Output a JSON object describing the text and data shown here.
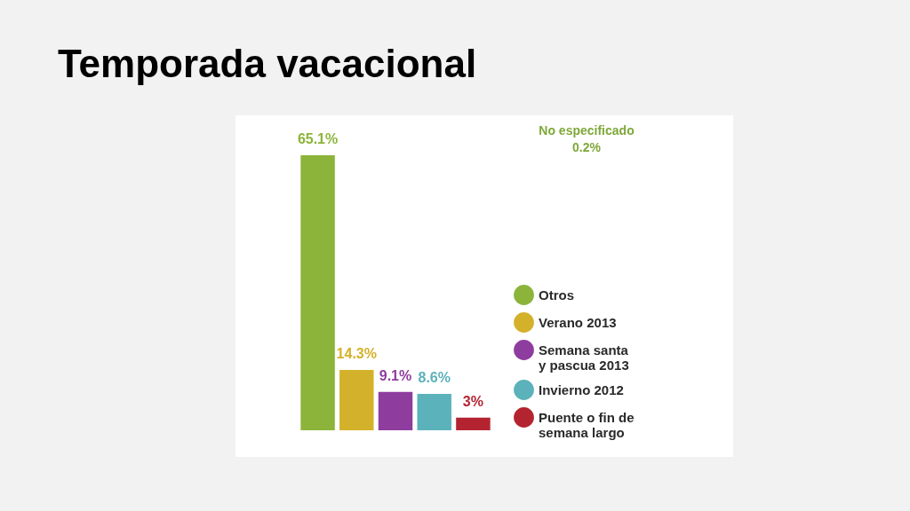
{
  "chart_data": {
    "type": "bar",
    "title": "Temporada vacacional",
    "categories": [
      null
    ],
    "series": [
      {
        "name": "Otros",
        "color": "#8cb43a",
        "values": [
          65.1
        ],
        "value_labels": [
          "65.1%"
        ]
      },
      {
        "name": "Verano 2013",
        "color": "#d4b12a",
        "values": [
          14.3
        ],
        "value_labels": [
          "14.3%"
        ]
      },
      {
        "name": "Semana santa y pascua 2013",
        "color": "#8e3d9e",
        "values": [
          9.1
        ],
        "value_labels": [
          "9.1%"
        ]
      },
      {
        "name": "Invierno 2012",
        "color": "#5bb2bb",
        "values": [
          8.6
        ],
        "value_labels": [
          "8.6%"
        ]
      },
      {
        "name": "Puente o fin de semana largo",
        "color": "#b32430",
        "values": [
          3
        ],
        "value_labels": [
          "3%"
        ]
      }
    ],
    "legend": "right",
    "tick_labels": false,
    "annotations": [
      "No especificado",
      "0.2%"
    ]
  }
}
